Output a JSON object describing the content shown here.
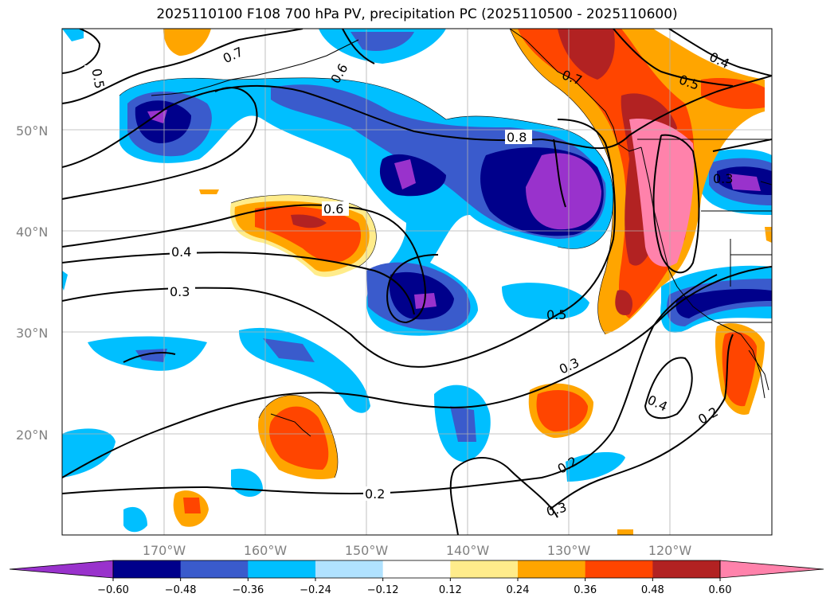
{
  "title": "2025110100 F108 700 hPa PV, precipitation PC (2025110500 - 2025110600)",
  "lat_labels": [
    "50°N",
    "40°N",
    "30°N",
    "20°N"
  ],
  "lon_labels": [
    "170°W",
    "160°W",
    "150°W",
    "140°W",
    "130°W",
    "120°W"
  ],
  "colorbar": {
    "ticks": [
      "−0.60",
      "−0.48",
      "−0.36",
      "−0.24",
      "−0.12",
      "0.12",
      "0.24",
      "0.36",
      "0.48",
      "0.60"
    ],
    "colors": [
      "#9932cc",
      "#00008b",
      "#3a5bcc",
      "#00bfff",
      "#b0e2ff",
      "#ffffff",
      "#ffec8b",
      "#ffa500",
      "#ff4500",
      "#b22222",
      "#ff82ab",
      "#ff82ab"
    ]
  },
  "contour_labels": [
    "0.5",
    "0.7",
    "0.6",
    "0.7",
    "0.4",
    "0.5",
    "0.8",
    "0.3",
    "0.6",
    "0.4",
    "0.3",
    "0.5",
    "0.3",
    "0.4",
    "0.2",
    "0.2",
    "0.2",
    "0.3"
  ]
}
